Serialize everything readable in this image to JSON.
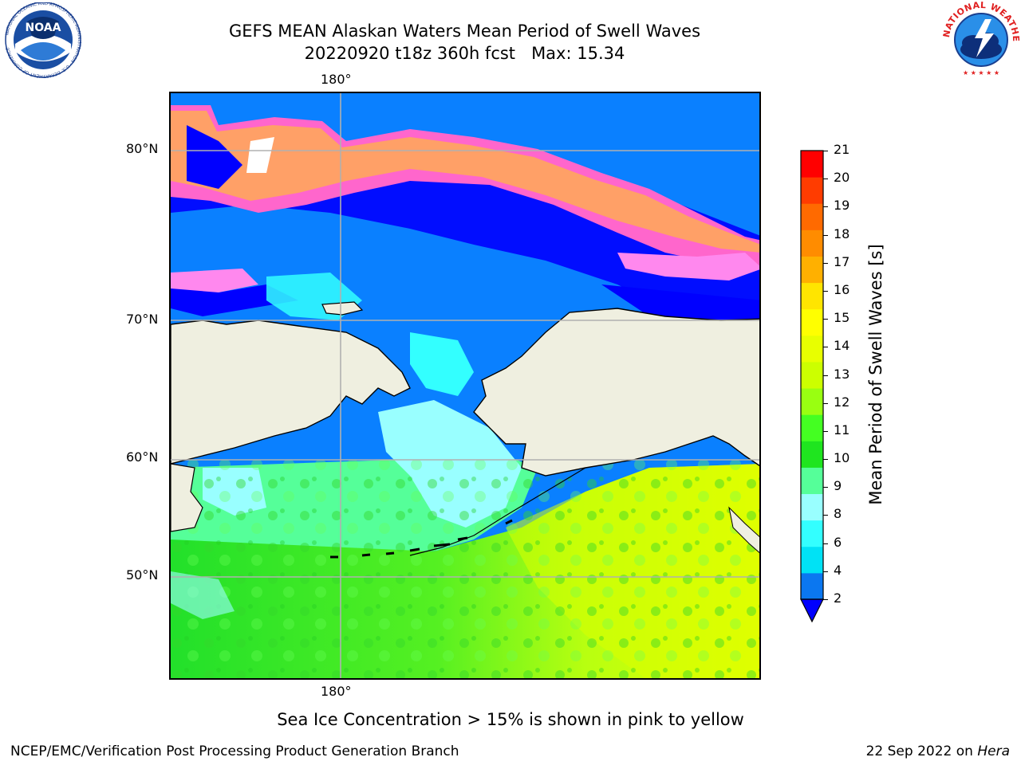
{
  "title": {
    "line1": "GEFS MEAN Alaskan Waters Mean Period of Swell Waves",
    "line2": "20220920 t18z 360h fcst   Max: 15.34"
  },
  "logos": {
    "left": "noa-logo",
    "left_text": "NOAA",
    "left_ring_text": "NATIONAL OCEANIC AND ATMOSPHERIC ADMINISTRATION · U.S. DEPARTMENT OF COMMERCE",
    "right": "nws-logo",
    "right_ring_text": "NATIONAL WEATHER SERVICE"
  },
  "map": {
    "lon_label_top": "180°",
    "lon_label_bottom": "180°",
    "lat_labels": [
      "80°N",
      "70°N",
      "60°N",
      "50°N"
    ],
    "land_color": "#efefe0",
    "ice_colors": [
      "#ff55cc",
      "#ff88ee",
      "#ffaa55",
      "#ffcc55"
    ],
    "open_ice_color": "#ffffff"
  },
  "colorbar": {
    "label": "Mean Period of Swell Waves [s]",
    "ticks": [
      "21",
      "20",
      "19",
      "18",
      "17",
      "16",
      "15",
      "14",
      "13",
      "12",
      "11",
      "10",
      "9",
      "8",
      "6",
      "4",
      "2"
    ],
    "levels_bottom_to_top": [
      {
        "color": "#0b77f0"
      },
      {
        "color": "#00e2f5"
      },
      {
        "color": "#33ffff"
      },
      {
        "color": "#99ffff"
      },
      {
        "color": "#55ff99"
      },
      {
        "color": "#1fe51f"
      },
      {
        "color": "#44ff22"
      },
      {
        "color": "#99ff11"
      },
      {
        "color": "#ccff00"
      },
      {
        "color": "#e8ff00"
      },
      {
        "color": "#ffff00"
      },
      {
        "color": "#ffe500"
      },
      {
        "color": "#ffb000"
      },
      {
        "color": "#ff8c00"
      },
      {
        "color": "#ff6a00"
      },
      {
        "color": "#ff3c00"
      },
      {
        "color": "#ff0000"
      }
    ],
    "extend_color": "#0000ff"
  },
  "footer": {
    "note": "Sea Ice Concentration > 15% is shown in pink to yellow",
    "left": "NCEP/EMC/Verification Post Processing Product Generation Branch",
    "right_date": "22 Sep 2022 on ",
    "right_host": "Hera"
  }
}
